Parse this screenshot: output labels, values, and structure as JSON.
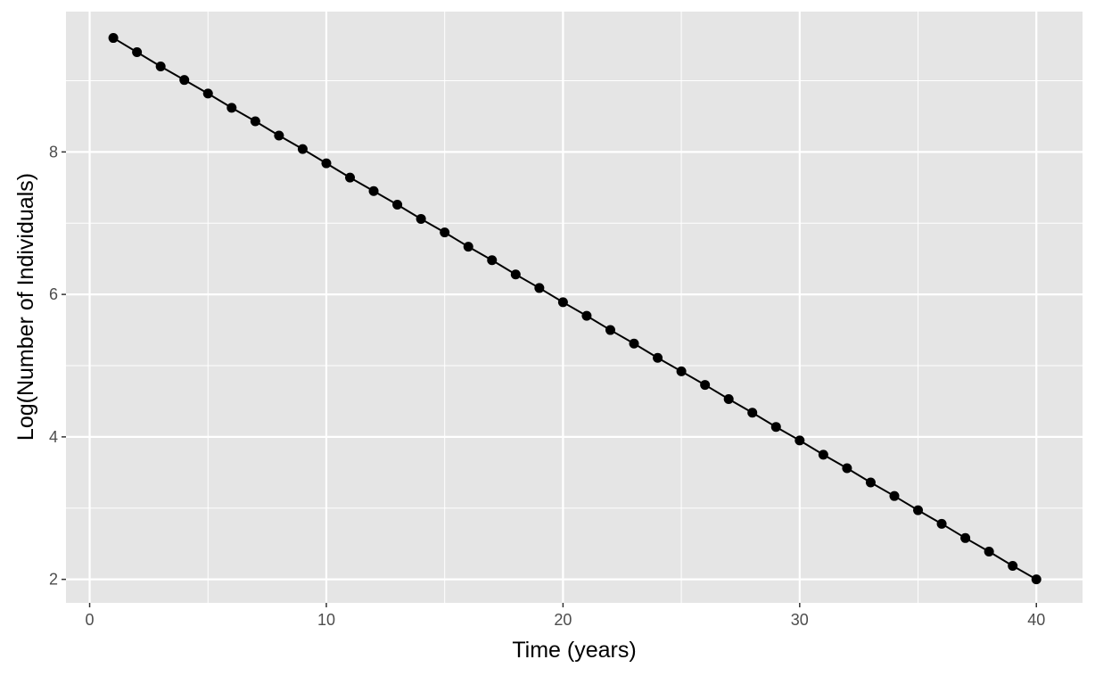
{
  "chart_data": {
    "type": "line",
    "xlabel": "Time (years)",
    "ylabel": "Log(Number of Individuals)",
    "xlim": [
      -1,
      41.95
    ],
    "ylim": [
      1.67,
      9.97
    ],
    "x_ticks": [
      0,
      10,
      20,
      30,
      40
    ],
    "x_minor_ticks": [
      5,
      15,
      25,
      35
    ],
    "y_ticks": [
      2,
      4,
      6,
      8
    ],
    "y_minor_ticks": [
      3,
      5,
      7,
      9
    ],
    "grid": true,
    "panel_background": "#e5e5e5",
    "grid_color": "#ffffff",
    "series_color": "#000000",
    "series": [
      {
        "x": [
          1,
          2,
          3,
          4,
          5,
          6,
          7,
          8,
          9,
          10,
          11,
          12,
          13,
          14,
          15,
          16,
          17,
          18,
          19,
          20,
          21,
          22,
          23,
          24,
          25,
          26,
          27,
          28,
          29,
          30,
          31,
          32,
          33,
          34,
          35,
          36,
          37,
          38,
          39,
          40
        ],
        "y": [
          9.6,
          9.4,
          9.2,
          9.01,
          8.82,
          8.62,
          8.43,
          8.23,
          8.04,
          7.84,
          7.64,
          7.45,
          7.26,
          7.06,
          6.87,
          6.67,
          6.48,
          6.28,
          6.09,
          5.89,
          5.7,
          5.5,
          5.31,
          5.11,
          4.92,
          4.73,
          4.53,
          4.34,
          4.14,
          3.95,
          3.75,
          3.56,
          3.36,
          3.17,
          2.97,
          2.78,
          2.58,
          2.39,
          2.19,
          2.0
        ]
      }
    ]
  }
}
